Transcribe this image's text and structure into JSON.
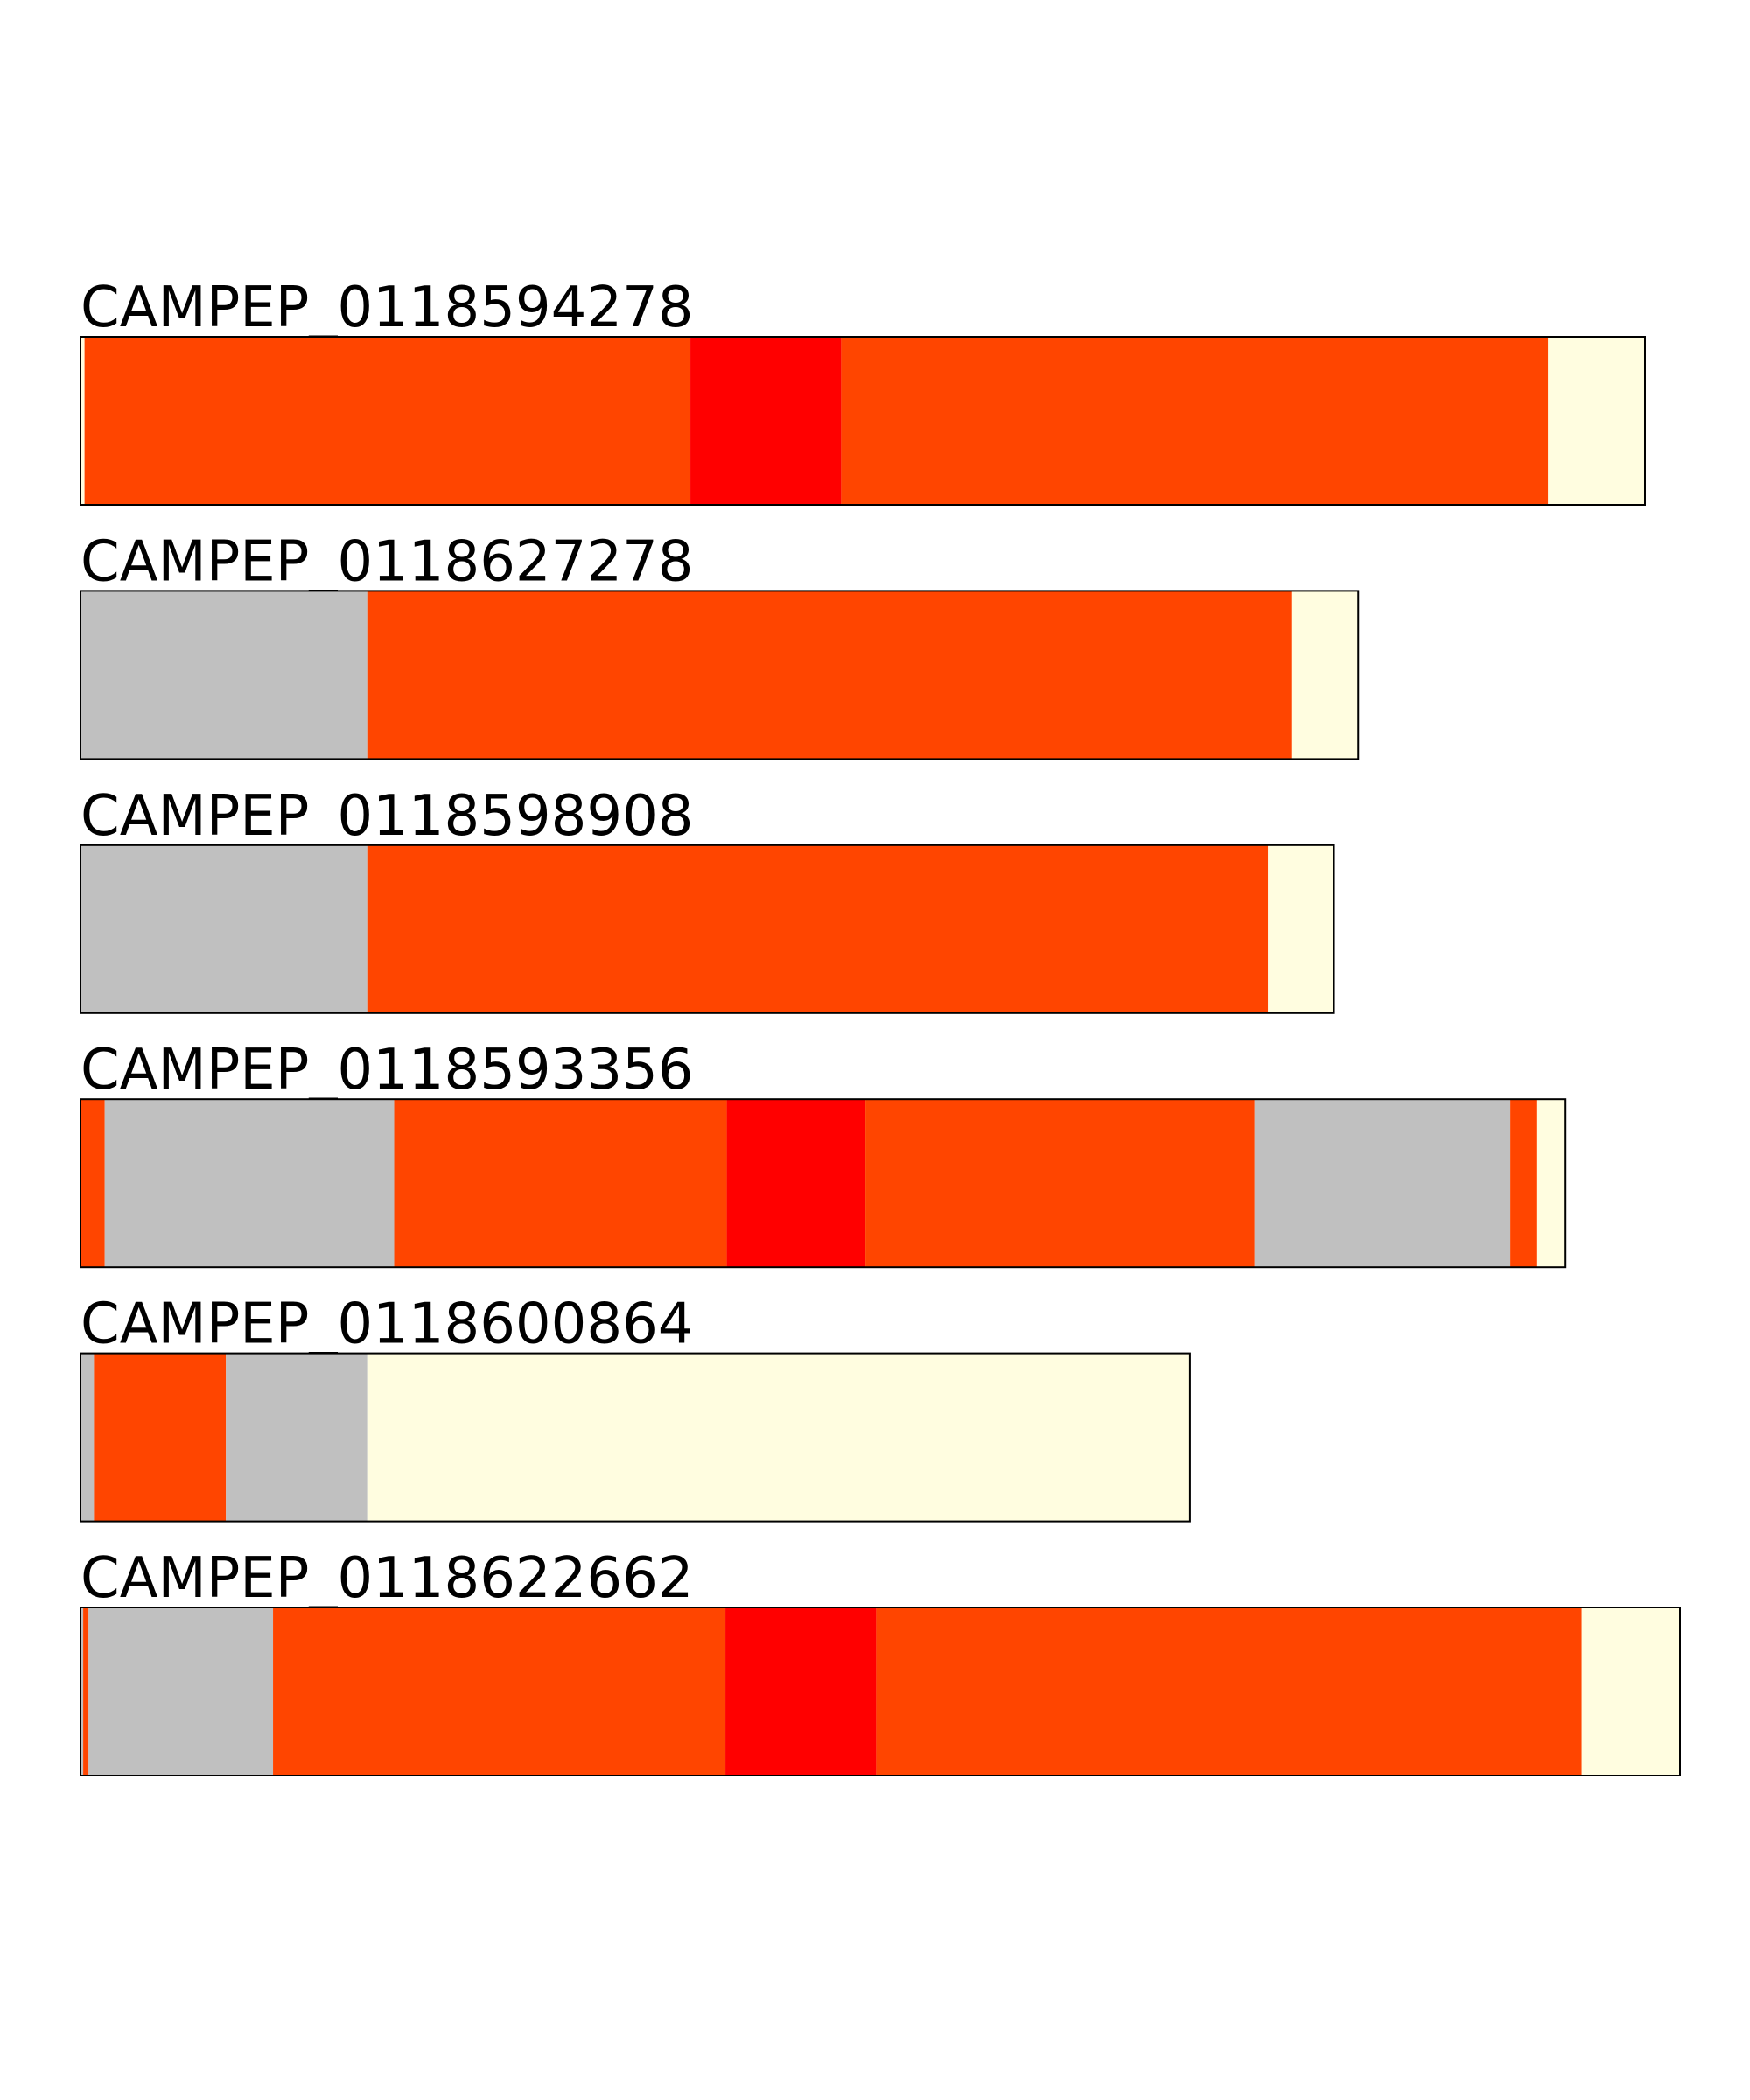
{
  "scale_max": 1188,
  "tracks": [
    {
      "label": "CAMPEP_0118594278",
      "length": 1162,
      "segments": [
        {
          "start": 0,
          "end": 3,
          "color": "#fffde0"
        },
        {
          "start": 3,
          "end": 453,
          "color": "#ff4500"
        },
        {
          "start": 453,
          "end": 565,
          "color": "#ff0000"
        },
        {
          "start": 565,
          "end": 1090,
          "color": "#ff4500"
        },
        {
          "start": 1090,
          "end": 1162,
          "color": "#fffde0"
        }
      ]
    },
    {
      "label": "CAMPEP_0118627278",
      "length": 949,
      "segments": [
        {
          "start": 0,
          "end": 213,
          "color": "#c0c0c0"
        },
        {
          "start": 213,
          "end": 900,
          "color": "#ff4500"
        },
        {
          "start": 900,
          "end": 949,
          "color": "#fffde0"
        }
      ]
    },
    {
      "label": "CAMPEP_0118598908",
      "length": 931,
      "segments": [
        {
          "start": 0,
          "end": 213,
          "color": "#c0c0c0"
        },
        {
          "start": 213,
          "end": 882,
          "color": "#ff4500"
        },
        {
          "start": 882,
          "end": 931,
          "color": "#fffde0"
        }
      ]
    },
    {
      "label": "CAMPEP_0118593356",
      "length": 1103,
      "segments": [
        {
          "start": 0,
          "end": 18,
          "color": "#ff4500"
        },
        {
          "start": 18,
          "end": 233,
          "color": "#c0c0c0"
        },
        {
          "start": 233,
          "end": 480,
          "color": "#ff4500"
        },
        {
          "start": 480,
          "end": 583,
          "color": "#ff0000"
        },
        {
          "start": 583,
          "end": 872,
          "color": "#ff4500"
        },
        {
          "start": 872,
          "end": 1062,
          "color": "#c0c0c0"
        },
        {
          "start": 1062,
          "end": 1082,
          "color": "#ff4500"
        },
        {
          "start": 1082,
          "end": 1103,
          "color": "#fffde0"
        }
      ]
    },
    {
      "label": "CAMPEP_0118600864",
      "length": 824,
      "segments": [
        {
          "start": 0,
          "end": 10,
          "color": "#c0c0c0"
        },
        {
          "start": 10,
          "end": 108,
          "color": "#ff4500"
        },
        {
          "start": 108,
          "end": 213,
          "color": "#c0c0c0"
        },
        {
          "start": 213,
          "end": 824,
          "color": "#fffde0"
        }
      ]
    },
    {
      "label": "CAMPEP_0118622662",
      "length": 1188,
      "segments": [
        {
          "start": 0,
          "end": 2,
          "color": "#c0c0c0"
        },
        {
          "start": 2,
          "end": 6,
          "color": "#ff4500"
        },
        {
          "start": 6,
          "end": 143,
          "color": "#c0c0c0"
        },
        {
          "start": 143,
          "end": 479,
          "color": "#ff4500"
        },
        {
          "start": 479,
          "end": 591,
          "color": "#ff0000"
        },
        {
          "start": 591,
          "end": 1115,
          "color": "#ff4500"
        },
        {
          "start": 1115,
          "end": 1188,
          "color": "#fffde0"
        }
      ]
    }
  ]
}
